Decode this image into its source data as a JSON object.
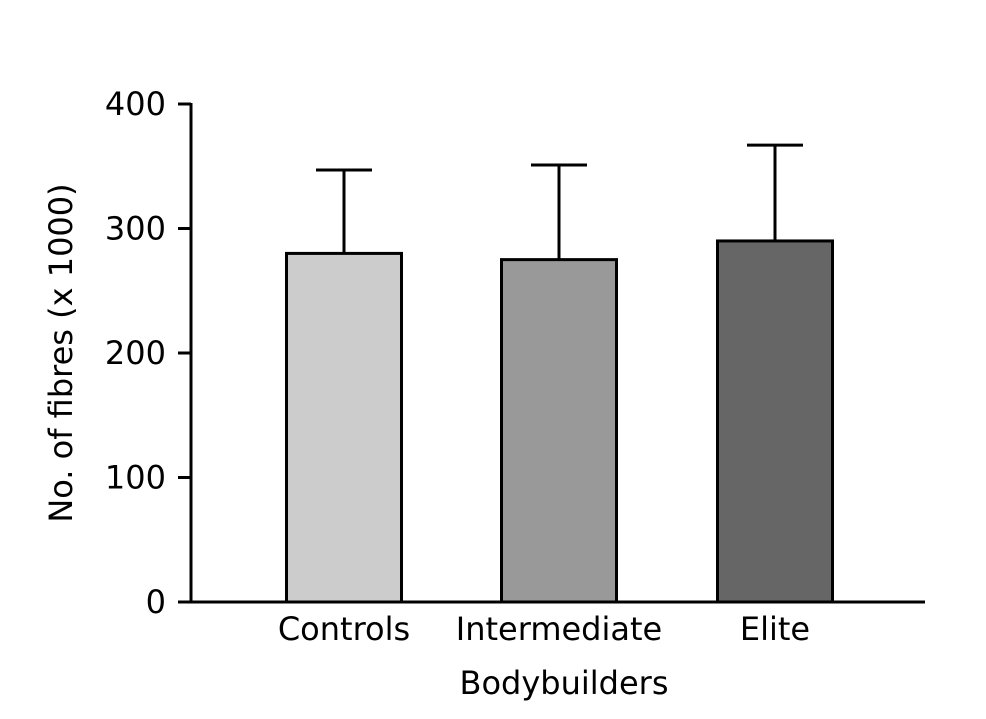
{
  "chart_data": {
    "type": "bar",
    "title": "",
    "xlabel": "Bodybuilders",
    "ylabel": "No. of fibres (x 1000)",
    "categories": [
      "Controls",
      "Intermediate",
      "Elite"
    ],
    "values": [
      280,
      275,
      290
    ],
    "error_upper": [
      347,
      351,
      367
    ],
    "bar_colors": [
      "#cccccc",
      "#999999",
      "#666666"
    ],
    "ylim": [
      0,
      400
    ],
    "yticks": [
      0,
      100,
      200,
      300,
      400
    ],
    "grid": false,
    "legend": "none"
  }
}
